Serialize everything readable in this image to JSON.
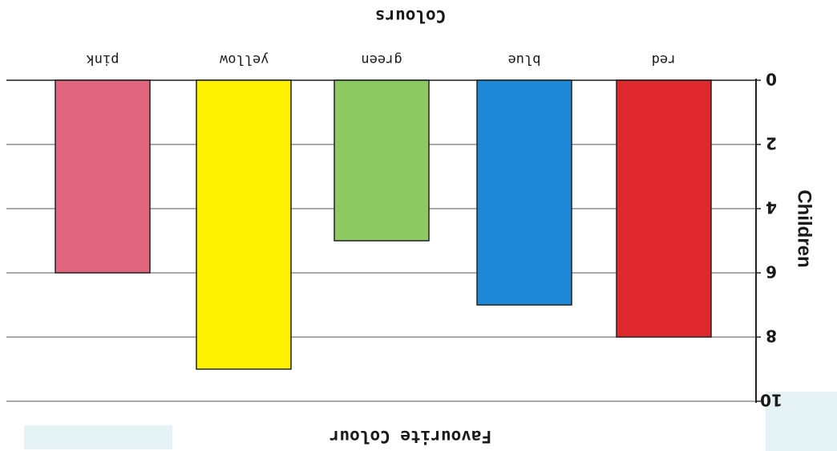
{
  "chart_data": {
    "type": "bar",
    "title": "",
    "xlabel": "Colours",
    "ylabel": "Children",
    "footer_title": "Favourite Colour",
    "categories": [
      "red",
      "blue",
      "green",
      "yellow",
      "pink"
    ],
    "values": [
      8,
      7,
      5,
      9,
      6
    ],
    "colors": [
      "#e0292f",
      "#1f88d6",
      "#8dc863",
      "#fff200",
      "#e0657f"
    ],
    "ylim": [
      0,
      10
    ],
    "yticks": [
      "0",
      "2",
      "4",
      "6",
      "8",
      "10"
    ],
    "grid": true,
    "orientation": "rotated-180"
  }
}
